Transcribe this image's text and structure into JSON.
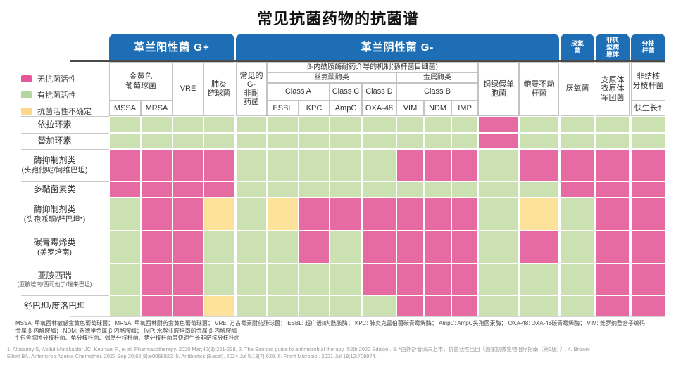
{
  "title": "常见抗菌药物的抗菌谱",
  "legend": [
    {
      "key": "P",
      "label": "无抗菌活性",
      "color": "#e4579b"
    },
    {
      "key": "G",
      "label": "有抗菌活性",
      "color": "#b5d79e"
    },
    {
      "key": "Y",
      "label": "抗菌活性不确定",
      "color": "#fbd88a"
    }
  ],
  "header": {
    "gp_banner": "革兰阳性菌 G+",
    "gn_banner": "革兰阴性菌 G-",
    "anaerobe_banner": "厌氧\n菌",
    "atypical_banner": "非典\n型病\n原体",
    "myco_banner": "分枝\n杆菌",
    "staph": "金黄色\n葡萄球菌",
    "mssa": "MSSA",
    "mrsa": "MRSA",
    "vre": "VRE",
    "pneumo": "肺炎\n链球菌",
    "gneg_common": "常见的\nG-\n非耐\n药菌",
    "beta_mech": "β-内酰胺酶耐药介导的机制(肠杆菌目细菌)",
    "serine": "丝氨酸酶类",
    "metallo": "金属酶类",
    "class_a": "Class A",
    "class_c": "Class C",
    "class_d": "Class D",
    "class_b": "Class B",
    "esbl": "ESBL",
    "kpc": "KPC",
    "ampc": "AmpC",
    "oxa48": "OXA-48",
    "vim": "VIM",
    "ndm": "NDM",
    "imp": "IMP",
    "pseudomonas": "铜绿假单\n胞菌",
    "acinetobacter": "鲍曼不动\n杆菌",
    "anaerobe": "厌氧菌",
    "atypical": "支原体\n衣原体\n军团菌",
    "ntm": "非结核\n分枝杆菌",
    "fast_grow": "快生长†"
  },
  "chart_data": {
    "type": "heatmap",
    "title": "常见抗菌药物的抗菌谱",
    "value_legend": {
      "P": "无抗菌活性",
      "G": "有抗菌活性",
      "Y": "抗菌活性不确定"
    },
    "cell_colors": {
      "P": "#e66ba3",
      "G": "#cbe1b2",
      "Y": "#fce29a"
    },
    "column_groups": [
      "革兰阳性菌 G+",
      "革兰阴性菌 G-",
      "厌氧菌",
      "非典型病原体",
      "分枝杆菌"
    ],
    "columns": [
      "MSSA",
      "MRSA",
      "VRE",
      "肺炎链球菌",
      "常见的G-非耐药菌",
      "ESBL",
      "KPC",
      "AmpC",
      "OXA-48",
      "VIM",
      "NDM",
      "IMP",
      "铜绿假单胞菌",
      "鲍曼不动杆菌",
      "厌氧菌",
      "支原体衣原体军团菌",
      "非结核分枝杆菌 快生长†"
    ],
    "rows": [
      {
        "label": "依拉环素",
        "sub": "",
        "tiny": false
      },
      {
        "label": "替加环素",
        "sub": "",
        "tiny": false
      },
      {
        "label": "酶抑制剂类",
        "sub": "(头孢他啶/阿维巴坦)",
        "tiny": false
      },
      {
        "label": "多黏菌素类",
        "sub": "",
        "tiny": false
      },
      {
        "label": "酶抑制剂类",
        "sub": "(头孢哌酮/舒巴坦*)",
        "tiny": false
      },
      {
        "label": "碳青霉烯类",
        "sub": "(美罗培南)",
        "tiny": false
      },
      {
        "label": "亚胺西瑞",
        "sub": "(亚胺培南/西司他丁/瑞来巴坦)",
        "tiny": true
      },
      {
        "label": "舒巴坦/度洛巴坦",
        "sub": "",
        "tiny": false
      }
    ],
    "matrix": [
      [
        "G",
        "G",
        "G",
        "G",
        "G",
        "G",
        "G",
        "G",
        "G",
        "G",
        "G",
        "G",
        "P",
        "G",
        "G",
        "G",
        "G"
      ],
      [
        "G",
        "G",
        "G",
        "G",
        "G",
        "G",
        "G",
        "G",
        "G",
        "G",
        "G",
        "G",
        "P",
        "G",
        "G",
        "G",
        "G"
      ],
      [
        "P",
        "P",
        "P",
        "P",
        "G",
        "G",
        "G",
        "G",
        "G",
        "P",
        "P",
        "P",
        "G",
        "P",
        "P",
        "P",
        "P"
      ],
      [
        "P",
        "P",
        "P",
        "P",
        "G",
        "G",
        "G",
        "G",
        "G",
        "G",
        "G",
        "G",
        "G",
        "G",
        "P",
        "P",
        "P"
      ],
      [
        "G",
        "P",
        "P",
        "Y",
        "G",
        "Y",
        "P",
        "P",
        "P",
        "P",
        "P",
        "P",
        "G",
        "Y",
        "G",
        "P",
        "P"
      ],
      [
        "G",
        "P",
        "P",
        "G",
        "G",
        "G",
        "P",
        "G",
        "P",
        "P",
        "P",
        "P",
        "G",
        "P",
        "G",
        "P",
        "P"
      ],
      [
        "G",
        "P",
        "P",
        "G",
        "G",
        "G",
        "G",
        "G",
        "P",
        "P",
        "P",
        "P",
        "G",
        "G",
        "G",
        "P",
        "P"
      ],
      [
        "G",
        "P",
        "P",
        "Y",
        "G",
        "G",
        "G",
        "G",
        "G",
        "P",
        "P",
        "P",
        "G",
        "G",
        "G",
        "P",
        "P"
      ]
    ]
  },
  "footnotes": [
    "MSSA: 甲氧西林敏感金黄色葡萄球菌； MRSA: 甲氧西林耐药金黄色葡萄球菌； VRE: 万古霉素耐药肠球菌； ESBL: 超广谱β内酰胺酶； KPC: 肺炎克雷伯菌碳青霉烯酶； AmpC: AmpC头孢菌素酶； OXA-48: OXA-48碳青霉烯酶； VIM: 维罗纳整合子编码",
    "金属 β-内酰胺酶； NDM: 新德里金属 β-内酰胺酶； IMP: 水解亚胺培南的金属 β-内酰胺酶",
    "† 包含脓肿分枝杆菌、龟分枝杆菌、偶然分枝杆菌、猪分枝杆菌等快速生长非结核分枝杆菌"
  ],
  "references": "1. Alosaimy S, Abdul-Mutakabbir JC, Kebriaei R, et al. Pharmacotherapy. 2020 Mar;40(3):221-238.  2. The Sanford guide to antimicrobial therapy (52th 2022 Edition).  3. *国外舒普深未上市，抗菌活性出自《国家抗微生物治疗指南（第3版）》.  4. Brown-\nElliott BA. Antimicrob Agents Chemother. 2022 Sep 20;66(9):e0068922.  5. Antibiotics (Basel). 2024 Jul 5;13(7):629.  6. Front Microbiol. 2021 Jul 19;12:709974."
}
